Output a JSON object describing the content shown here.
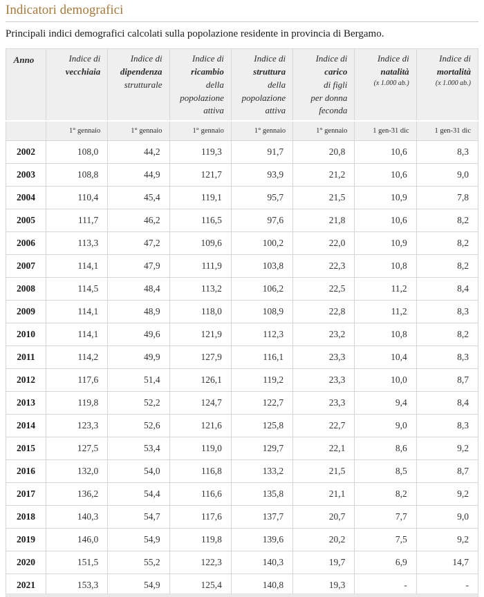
{
  "page": {
    "title": "Indicatori demografici",
    "subtitle": "Principali indici demografici calcolati sulla popolazione residente in provincia di Bergamo."
  },
  "colors": {
    "title_accent": "#a5793a",
    "header_bg": "#efefef",
    "cell_border": "#d6d6d6"
  },
  "table": {
    "year_header": "Anno",
    "columns": [
      {
        "lines": [
          {
            "t": "Indice di",
            "b": false
          },
          {
            "t": "vecchiaia",
            "b": true
          }
        ],
        "sub": "",
        "period": "1° gennaio"
      },
      {
        "lines": [
          {
            "t": "Indice di",
            "b": false
          },
          {
            "t": "dipendenza",
            "b": true
          },
          {
            "t": "strutturale",
            "b": false
          }
        ],
        "sub": "",
        "period": "1° gennaio"
      },
      {
        "lines": [
          {
            "t": "Indice di",
            "b": false
          },
          {
            "t": "ricambio",
            "b": true
          },
          {
            "t": "della",
            "b": false
          },
          {
            "t": "popolazione",
            "b": false
          },
          {
            "t": "attiva",
            "b": false
          }
        ],
        "sub": "",
        "period": "1° gennaio"
      },
      {
        "lines": [
          {
            "t": "Indice di",
            "b": false
          },
          {
            "t": "struttura",
            "b": true
          },
          {
            "t": "della",
            "b": false
          },
          {
            "t": "popolazione",
            "b": false
          },
          {
            "t": "attiva",
            "b": false
          }
        ],
        "sub": "",
        "period": "1° gennaio"
      },
      {
        "lines": [
          {
            "t": "Indice di",
            "b": false
          },
          {
            "t": "carico",
            "b": true
          },
          {
            "t": "di figli",
            "b": false
          },
          {
            "t": "per donna",
            "b": false
          },
          {
            "t": "feconda",
            "b": false
          }
        ],
        "sub": "",
        "period": "1° gennaio"
      },
      {
        "lines": [
          {
            "t": "Indice di",
            "b": false
          },
          {
            "t": "natalità",
            "b": true
          }
        ],
        "sub": "(x 1.000 ab.)",
        "period": "1 gen-31 dic"
      },
      {
        "lines": [
          {
            "t": "Indice di",
            "b": false
          },
          {
            "t": "mortalità",
            "b": true
          }
        ],
        "sub": "(x 1.000 ab.)",
        "period": "1 gen-31 dic"
      }
    ],
    "rows": [
      {
        "year": "2002",
        "values": [
          "108,0",
          "44,2",
          "119,3",
          "91,7",
          "20,8",
          "10,6",
          "8,3"
        ]
      },
      {
        "year": "2003",
        "values": [
          "108,8",
          "44,9",
          "121,7",
          "93,9",
          "21,2",
          "10,6",
          "9,0"
        ]
      },
      {
        "year": "2004",
        "values": [
          "110,4",
          "45,4",
          "119,1",
          "95,7",
          "21,5",
          "10,9",
          "7,8"
        ]
      },
      {
        "year": "2005",
        "values": [
          "111,7",
          "46,2",
          "116,5",
          "97,6",
          "21,8",
          "10,6",
          "8,2"
        ]
      },
      {
        "year": "2006",
        "values": [
          "113,3",
          "47,2",
          "109,6",
          "100,2",
          "22,0",
          "10,9",
          "8,2"
        ]
      },
      {
        "year": "2007",
        "values": [
          "114,1",
          "47,9",
          "111,9",
          "103,8",
          "22,3",
          "10,8",
          "8,2"
        ]
      },
      {
        "year": "2008",
        "values": [
          "114,5",
          "48,4",
          "113,2",
          "106,2",
          "22,5",
          "11,2",
          "8,4"
        ]
      },
      {
        "year": "2009",
        "values": [
          "114,1",
          "48,9",
          "118,0",
          "108,9",
          "22,8",
          "11,2",
          "8,3"
        ]
      },
      {
        "year": "2010",
        "values": [
          "114,1",
          "49,6",
          "121,9",
          "112,3",
          "23,2",
          "10,8",
          "8,2"
        ]
      },
      {
        "year": "2011",
        "values": [
          "114,2",
          "49,9",
          "127,9",
          "116,1",
          "23,3",
          "10,4",
          "8,3"
        ]
      },
      {
        "year": "2012",
        "values": [
          "117,6",
          "51,4",
          "126,1",
          "119,2",
          "23,3",
          "10,0",
          "8,7"
        ]
      },
      {
        "year": "2013",
        "values": [
          "119,8",
          "52,2",
          "124,7",
          "122,7",
          "23,3",
          "9,4",
          "8,4"
        ]
      },
      {
        "year": "2014",
        "values": [
          "123,3",
          "52,6",
          "121,6",
          "125,8",
          "22,7",
          "9,0",
          "8,3"
        ]
      },
      {
        "year": "2015",
        "values": [
          "127,5",
          "53,4",
          "119,0",
          "129,7",
          "22,1",
          "8,6",
          "9,2"
        ]
      },
      {
        "year": "2016",
        "values": [
          "132,0",
          "54,0",
          "116,8",
          "133,2",
          "21,5",
          "8,5",
          "8,7"
        ]
      },
      {
        "year": "2017",
        "values": [
          "136,2",
          "54,4",
          "116,6",
          "135,8",
          "21,1",
          "8,2",
          "9,2"
        ]
      },
      {
        "year": "2018",
        "values": [
          "140,3",
          "54,7",
          "117,6",
          "137,7",
          "20,7",
          "7,7",
          "9,0"
        ]
      },
      {
        "year": "2019",
        "values": [
          "146,0",
          "54,9",
          "119,8",
          "139,6",
          "20,2",
          "7,5",
          "9,2"
        ]
      },
      {
        "year": "2020",
        "values": [
          "151,5",
          "55,2",
          "122,3",
          "140,3",
          "19,7",
          "6,9",
          "14,7"
        ]
      },
      {
        "year": "2021",
        "values": [
          "153,3",
          "54,9",
          "125,4",
          "140,8",
          "19,3",
          "-",
          "-"
        ]
      }
    ]
  }
}
